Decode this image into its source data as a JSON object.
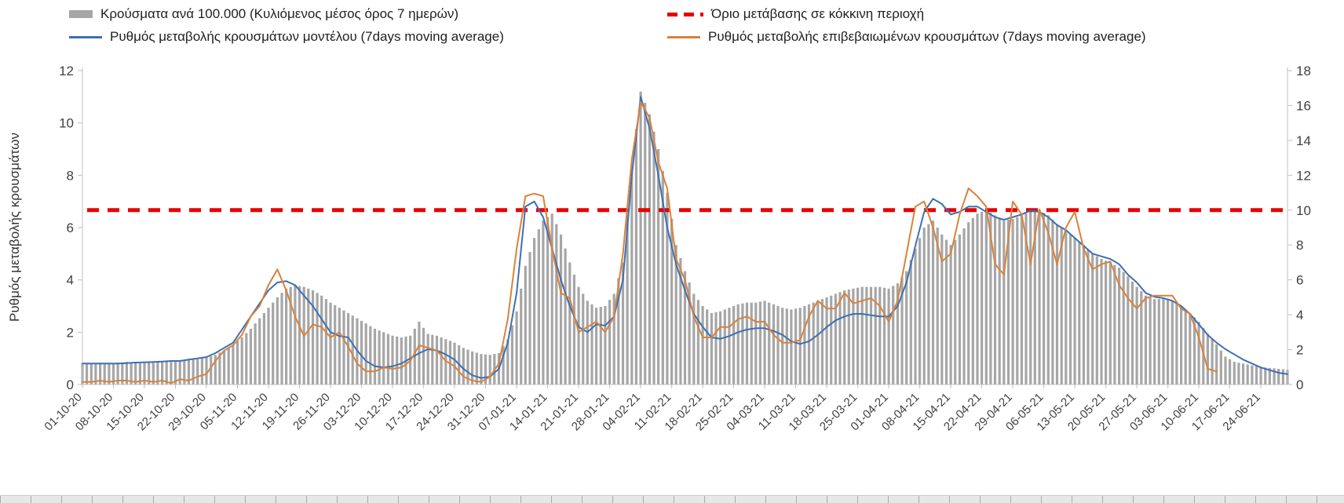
{
  "colors": {
    "bars": "#a6a6a6",
    "model_line": "#3d6fb4",
    "confirmed_line": "#d9823a",
    "threshold": "#e60000",
    "axis": "#c0c0c0",
    "axis_text": "#404040"
  },
  "chart_data": {
    "type": "bar",
    "subtype": "combo-bar-plus-lines",
    "title": "",
    "x_tick_interval_days": 7,
    "sample_interval_days": 2,
    "total_days": 273,
    "x_tick_labels": [
      "01-10-20",
      "08-10-20",
      "15-10-20",
      "22-10-20",
      "29-10-20",
      "05-11-20",
      "12-11-20",
      "19-11-20",
      "26-11-20",
      "03-12-20",
      "10-12-20",
      "17-12-20",
      "24-12-20",
      "31-12-20",
      "07-01-21",
      "14-01-21",
      "21-01-21",
      "28-01-21",
      "04-02-21",
      "11-02-21",
      "18-02-21",
      "25-02-21",
      "04-03-21",
      "11-03-21",
      "18-03-21",
      "25-03-21",
      "01-04-21",
      "08-04-21",
      "15-04-21",
      "22-04-21",
      "29-04-21",
      "06-05-21",
      "13-05-21",
      "20-05-21",
      "27-05-21",
      "03-06-21",
      "10-06-21",
      "17-06-21",
      "24-06-21"
    ],
    "left_axis": {
      "label": "Ρυθμός μεταβολής κρουσμάτων",
      "range": [
        0,
        12
      ],
      "ticks": [
        0,
        2,
        4,
        6,
        8,
        10,
        12
      ]
    },
    "right_axis": {
      "label": "",
      "range": [
        0,
        18
      ],
      "ticks": [
        0,
        2,
        4,
        6,
        8,
        10,
        12,
        14,
        16,
        18
      ]
    },
    "threshold": {
      "name": "Όριο μετάβασης σε κόκκινη περιοχή",
      "axis": "right",
      "value": 10,
      "color": "#e60000",
      "style": "dashed"
    },
    "bar_series": {
      "name": "Κρούσματα ανά 100.000 (Κυλιόμενος μέσος όρος 7 ημερών)",
      "axis": "right",
      "color": "#a6a6a6",
      "values": [
        1.2,
        1.2,
        1.25,
        1.2,
        1.25,
        1.3,
        1.25,
        1.3,
        1.3,
        1.35,
        1.3,
        1.4,
        1.4,
        1.45,
        1.55,
        1.7,
        1.95,
        2.3,
        2.7,
        3.2,
        3.8,
        4.4,
        5.0,
        5.5,
        5.7,
        5.6,
        5.4,
        5.1,
        4.7,
        4.4,
        4.1,
        3.8,
        3.5,
        3.2,
        3.0,
        2.8,
        2.7,
        2.8,
        3.6,
        2.9,
        2.8,
        2.6,
        2.4,
        2.1,
        1.9,
        1.75,
        1.7,
        1.8,
        2.6,
        4.2,
        6.8,
        8.4,
        9.4,
        9.8,
        8.6,
        7.0,
        5.6,
        4.8,
        4.4,
        4.5,
        5.2,
        7.0,
        12.5,
        16.8,
        15.5,
        13.5,
        11.0,
        8.0,
        6.5,
        5.2,
        4.5,
        4.1,
        4.2,
        4.4,
        4.6,
        4.7,
        4.7,
        4.8,
        4.6,
        4.4,
        4.3,
        4.4,
        4.6,
        4.8,
        5.0,
        5.2,
        5.4,
        5.5,
        5.6,
        5.6,
        5.6,
        5.5,
        5.8,
        6.5,
        7.8,
        9.0,
        9.4,
        8.6,
        8.0,
        8.6,
        9.3,
        9.8,
        10.0,
        9.7,
        9.4,
        9.5,
        9.7,
        9.9,
        10.0,
        9.7,
        9.2,
        8.8,
        8.4,
        8.0,
        7.5,
        7.2,
        7.0,
        6.7,
        6.2,
        5.6,
        5.1,
        4.9,
        4.9,
        4.8,
        4.5,
        4.1,
        3.6,
        2.9,
        2.3,
        1.6,
        1.3,
        1.2,
        1.1,
        1.0,
        0.95,
        0.9,
        0.85
      ]
    },
    "line_series": [
      {
        "name": "Ρυθμός μεταβολής κρουσμάτων μοντέλου (7days moving average)",
        "axis": "left",
        "color": "#3d6fb4",
        "values": [
          0.8,
          0.8,
          0.8,
          0.8,
          0.8,
          0.82,
          0.84,
          0.85,
          0.86,
          0.88,
          0.9,
          0.9,
          0.95,
          1.0,
          1.05,
          1.2,
          1.4,
          1.6,
          2.1,
          2.6,
          3.1,
          3.6,
          3.9,
          3.95,
          3.8,
          3.4,
          3.0,
          2.5,
          2.0,
          1.85,
          1.8,
          1.3,
          0.9,
          0.7,
          0.65,
          0.7,
          0.8,
          1.0,
          1.2,
          1.35,
          1.3,
          1.15,
          0.95,
          0.6,
          0.35,
          0.25,
          0.3,
          0.6,
          1.6,
          3.5,
          6.8,
          7.0,
          6.4,
          5.2,
          4.0,
          3.0,
          2.2,
          2.0,
          2.3,
          2.25,
          2.6,
          4.0,
          8.0,
          11.0,
          9.8,
          8.0,
          6.0,
          4.6,
          3.6,
          2.7,
          2.2,
          1.8,
          1.75,
          1.85,
          2.0,
          2.1,
          2.15,
          2.15,
          2.05,
          1.9,
          1.65,
          1.55,
          1.65,
          1.9,
          2.2,
          2.45,
          2.6,
          2.7,
          2.7,
          2.65,
          2.6,
          2.6,
          3.0,
          3.9,
          5.3,
          6.6,
          7.1,
          6.9,
          6.5,
          6.6,
          6.8,
          6.8,
          6.6,
          6.4,
          6.3,
          6.4,
          6.5,
          6.65,
          6.6,
          6.4,
          6.1,
          5.9,
          5.6,
          5.3,
          5.0,
          4.9,
          4.8,
          4.6,
          4.2,
          3.9,
          3.5,
          3.35,
          3.3,
          3.2,
          3.0,
          2.7,
          2.3,
          1.9,
          1.6,
          1.35,
          1.15,
          0.95,
          0.8,
          0.65,
          0.55,
          0.45,
          0.4
        ]
      },
      {
        "name": "Ρυθμός μεταβολής επιβεβαιωμένων κρουσμάτων (7days moving average)",
        "axis": "left",
        "color": "#d9823a",
        "values": [
          0.1,
          0.1,
          0.15,
          0.1,
          0.15,
          0.15,
          0.1,
          0.15,
          0.1,
          0.15,
          0.05,
          0.2,
          0.15,
          0.3,
          0.4,
          0.9,
          1.3,
          1.5,
          1.9,
          2.6,
          3.0,
          3.8,
          4.4,
          3.6,
          2.6,
          1.85,
          2.3,
          2.2,
          1.8,
          2.0,
          1.45,
          0.8,
          0.5,
          0.5,
          0.65,
          0.6,
          0.65,
          0.9,
          1.5,
          1.4,
          1.3,
          0.9,
          0.7,
          0.3,
          0.15,
          0.1,
          0.3,
          0.8,
          2.5,
          5.2,
          7.2,
          7.3,
          7.2,
          5.2,
          3.5,
          3.3,
          2.0,
          2.2,
          2.4,
          2.0,
          2.6,
          5.0,
          8.6,
          10.8,
          10.2,
          8.5,
          7.5,
          4.8,
          4.0,
          2.6,
          1.8,
          1.8,
          2.2,
          2.2,
          2.5,
          2.6,
          2.4,
          2.4,
          1.9,
          1.6,
          1.6,
          1.7,
          2.6,
          3.2,
          2.9,
          2.9,
          3.5,
          3.1,
          3.2,
          3.3,
          3.0,
          2.4,
          3.2,
          5.0,
          6.8,
          7.0,
          6.0,
          4.7,
          5.0,
          6.5,
          7.5,
          7.2,
          6.8,
          4.6,
          4.2,
          7.0,
          6.5,
          4.6,
          6.7,
          5.8,
          4.6,
          6.0,
          6.6,
          5.2,
          4.4,
          4.6,
          4.7,
          3.8,
          3.3,
          2.9,
          3.3,
          3.4,
          3.4,
          3.4,
          2.9,
          2.7,
          1.8,
          0.6,
          0.5,
          null,
          null,
          null,
          null,
          null,
          null,
          null,
          null
        ]
      }
    ]
  }
}
